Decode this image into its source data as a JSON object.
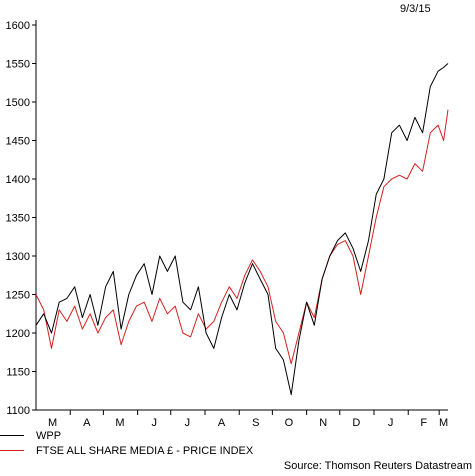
{
  "date_label": "9/3/15",
  "source": "Source: Thomson Reuters Datastream",
  "colors": {
    "wpp": "#000000",
    "ftse": "#d62020",
    "axis": "#000000"
  },
  "chart_data": {
    "type": "line",
    "title": "",
    "xlabel": "",
    "ylabel": "",
    "ylim": [
      1100,
      1600
    ],
    "yticks": [
      1100,
      1150,
      1200,
      1250,
      1300,
      1350,
      1400,
      1450,
      1500,
      1550,
      1600
    ],
    "x_range": [
      "2014-03-01",
      "2015-03-09"
    ],
    "month_labels": [
      "M",
      "A",
      "M",
      "J",
      "J",
      "A",
      "S",
      "O",
      "N",
      "D",
      "J",
      "F",
      "M"
    ],
    "month_label_dates": [
      "2014-03-16",
      "2014-04-16",
      "2014-05-16",
      "2014-06-16",
      "2014-07-16",
      "2014-08-16",
      "2014-09-16",
      "2014-10-16",
      "2014-11-16",
      "2014-12-16",
      "2015-01-16",
      "2015-02-15",
      "2015-03-05"
    ],
    "month_boundaries": [
      "2014-04-01",
      "2014-05-01",
      "2014-06-01",
      "2014-07-01",
      "2014-08-01",
      "2014-09-01",
      "2014-10-01",
      "2014-11-01",
      "2014-12-01",
      "2015-01-01",
      "2015-02-01",
      "2015-03-01"
    ],
    "legend": [
      "WPP",
      "FTSE ALL SHARE MEDIA £ - PRICE INDEX"
    ],
    "series": [
      {
        "name": "WPP",
        "x": [
          "2014-03-01",
          "2014-03-08",
          "2014-03-15",
          "2014-03-22",
          "2014-03-29",
          "2014-04-05",
          "2014-04-12",
          "2014-04-19",
          "2014-04-26",
          "2014-05-03",
          "2014-05-10",
          "2014-05-17",
          "2014-05-24",
          "2014-05-31",
          "2014-06-07",
          "2014-06-14",
          "2014-06-21",
          "2014-06-28",
          "2014-07-05",
          "2014-07-12",
          "2014-07-19",
          "2014-07-26",
          "2014-08-02",
          "2014-08-09",
          "2014-08-16",
          "2014-08-23",
          "2014-08-30",
          "2014-09-06",
          "2014-09-13",
          "2014-09-20",
          "2014-09-27",
          "2014-10-04",
          "2014-10-11",
          "2014-10-18",
          "2014-10-25",
          "2014-11-01",
          "2014-11-08",
          "2014-11-15",
          "2014-11-22",
          "2014-11-29",
          "2014-12-06",
          "2014-12-13",
          "2014-12-20",
          "2014-12-27",
          "2015-01-03",
          "2015-01-10",
          "2015-01-17",
          "2015-01-24",
          "2015-01-31",
          "2015-02-07",
          "2015-02-14",
          "2015-02-21",
          "2015-02-28",
          "2015-03-05",
          "2015-03-09"
        ],
        "values": [
          1210,
          1225,
          1200,
          1240,
          1245,
          1260,
          1220,
          1250,
          1210,
          1260,
          1280,
          1205,
          1250,
          1275,
          1290,
          1250,
          1300,
          1280,
          1300,
          1240,
          1230,
          1260,
          1200,
          1180,
          1220,
          1250,
          1230,
          1265,
          1290,
          1270,
          1250,
          1180,
          1165,
          1120,
          1190,
          1240,
          1210,
          1270,
          1300,
          1320,
          1330,
          1310,
          1280,
          1320,
          1380,
          1400,
          1460,
          1470,
          1450,
          1480,
          1460,
          1520,
          1540,
          1545,
          1550
        ]
      },
      {
        "name": "FTSE ALL SHARE MEDIA £ - PRICE INDEX",
        "x": [
          "2014-03-01",
          "2014-03-08",
          "2014-03-15",
          "2014-03-22",
          "2014-03-29",
          "2014-04-05",
          "2014-04-12",
          "2014-04-19",
          "2014-04-26",
          "2014-05-03",
          "2014-05-10",
          "2014-05-17",
          "2014-05-24",
          "2014-05-31",
          "2014-06-07",
          "2014-06-14",
          "2014-06-21",
          "2014-06-28",
          "2014-07-05",
          "2014-07-12",
          "2014-07-19",
          "2014-07-26",
          "2014-08-02",
          "2014-08-09",
          "2014-08-16",
          "2014-08-23",
          "2014-08-30",
          "2014-09-06",
          "2014-09-13",
          "2014-09-20",
          "2014-09-27",
          "2014-10-04",
          "2014-10-11",
          "2014-10-18",
          "2014-10-25",
          "2014-11-01",
          "2014-11-08",
          "2014-11-15",
          "2014-11-22",
          "2014-11-29",
          "2014-12-06",
          "2014-12-13",
          "2014-12-20",
          "2014-12-27",
          "2015-01-03",
          "2015-01-10",
          "2015-01-17",
          "2015-01-24",
          "2015-01-31",
          "2015-02-07",
          "2015-02-14",
          "2015-02-21",
          "2015-02-28",
          "2015-03-05",
          "2015-03-09"
        ],
        "values": [
          1250,
          1230,
          1180,
          1230,
          1215,
          1235,
          1205,
          1225,
          1200,
          1220,
          1230,
          1185,
          1215,
          1235,
          1240,
          1215,
          1245,
          1225,
          1235,
          1200,
          1195,
          1225,
          1205,
          1215,
          1240,
          1260,
          1245,
          1275,
          1295,
          1280,
          1260,
          1215,
          1200,
          1160,
          1200,
          1240,
          1220,
          1270,
          1300,
          1315,
          1320,
          1300,
          1250,
          1300,
          1350,
          1390,
          1400,
          1405,
          1400,
          1420,
          1410,
          1460,
          1470,
          1450,
          1490
        ]
      }
    ]
  }
}
